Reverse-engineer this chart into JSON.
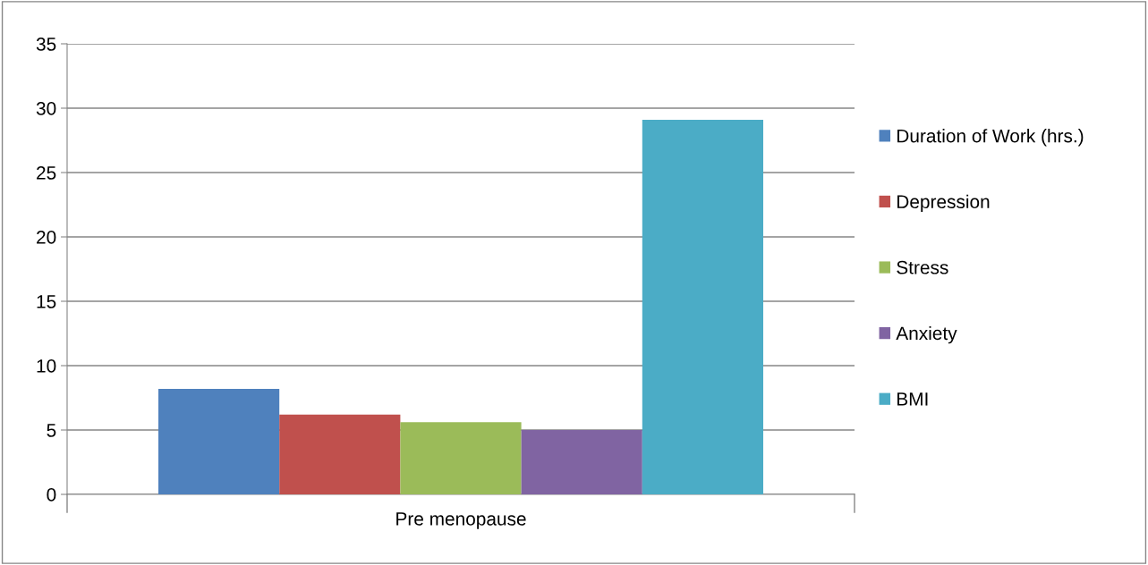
{
  "chart_data": {
    "type": "bar",
    "categories": [
      "Pre menopause"
    ],
    "series": [
      {
        "name": "Duration of Work (hrs.)",
        "color": "#4f81bd",
        "values": [
          8.2
        ]
      },
      {
        "name": "Depression",
        "color": "#c0504d",
        "values": [
          6.2
        ]
      },
      {
        "name": "Stress",
        "color": "#9bbb59",
        "values": [
          5.6
        ]
      },
      {
        "name": "Anxiety",
        "color": "#8064a2",
        "values": [
          5.0
        ]
      },
      {
        "name": "BMI",
        "color": "#4bacc6",
        "values": [
          29.1
        ]
      }
    ],
    "ylim": [
      0,
      35
    ],
    "yticks": [
      0,
      5,
      10,
      15,
      20,
      25,
      30,
      35
    ],
    "grid": "y",
    "legend": "right"
  }
}
